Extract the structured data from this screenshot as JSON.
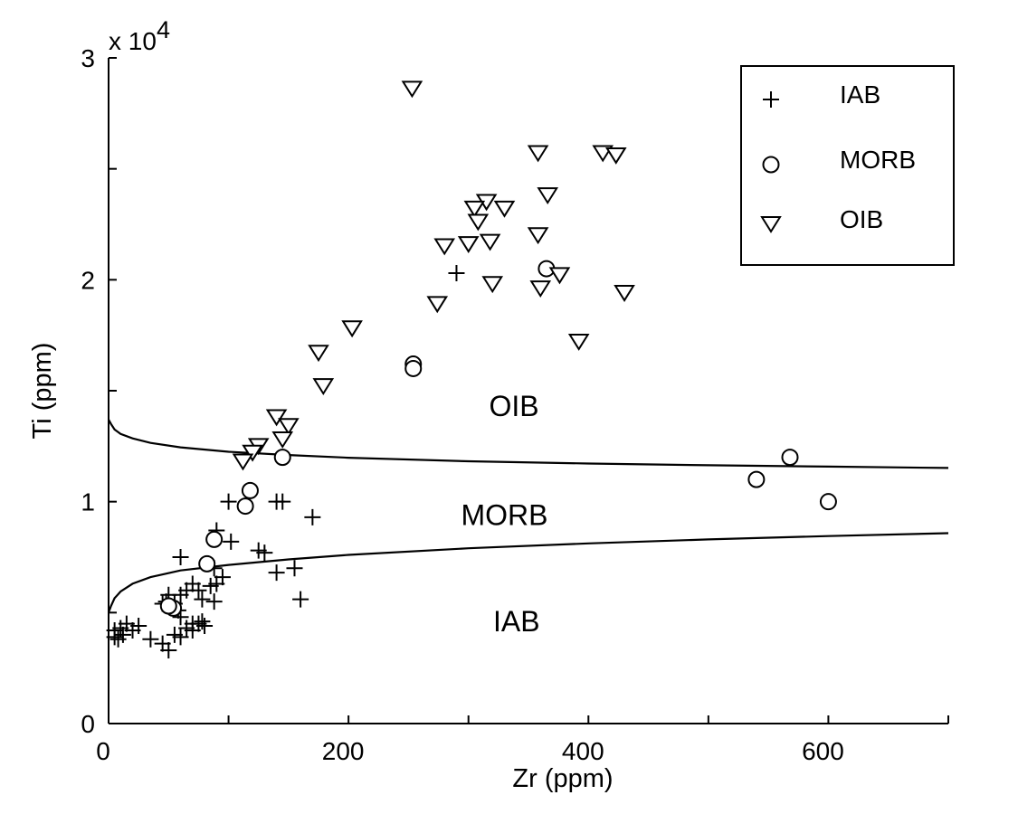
{
  "chart_data": {
    "type": "scatter",
    "xlabel": "Zr (ppm)",
    "ylabel": "Ti (ppm)",
    "xlim": [
      0,
      700
    ],
    "ylim": [
      0,
      30000
    ],
    "y_multiplier_label": "x 10",
    "y_multiplier_exponent": "4",
    "x_ticks": [
      0,
      100,
      200,
      300,
      400,
      500,
      600,
      700
    ],
    "x_tick_labels": [
      "0",
      "",
      "200",
      "",
      "400",
      "",
      "600",
      ""
    ],
    "y_ticks": [
      0,
      5000,
      10000,
      15000,
      20000,
      25000,
      30000
    ],
    "y_tick_labels": [
      "0",
      "",
      "1",
      "",
      "2",
      "",
      "3"
    ],
    "legend": {
      "position": "top-right",
      "entries": [
        {
          "label": "IAB",
          "marker": "plus"
        },
        {
          "label": "MORB",
          "marker": "circle"
        },
        {
          "label": "OIB",
          "marker": "triangle-down"
        }
      ]
    },
    "region_labels": [
      {
        "text": "OIB",
        "x": 338,
        "y": 14300
      },
      {
        "text": "MORB",
        "x": 330,
        "y": 9400
      },
      {
        "text": "IAB",
        "x": 340,
        "y": 4600
      }
    ],
    "boundaries": [
      {
        "name": "OIB-MORB boundary",
        "points": [
          [
            0,
            13700
          ],
          [
            2,
            13500
          ],
          [
            5,
            13250
          ],
          [
            10,
            13050
          ],
          [
            20,
            12850
          ],
          [
            35,
            12650
          ],
          [
            60,
            12450
          ],
          [
            100,
            12250
          ],
          [
            150,
            12100
          ],
          [
            200,
            11980
          ],
          [
            300,
            11820
          ],
          [
            400,
            11720
          ],
          [
            500,
            11640
          ],
          [
            600,
            11580
          ],
          [
            700,
            11520
          ]
        ]
      },
      {
        "name": "MORB-IAB boundary",
        "points": [
          [
            0,
            5000
          ],
          [
            2,
            5300
          ],
          [
            5,
            5650
          ],
          [
            10,
            5950
          ],
          [
            20,
            6300
          ],
          [
            35,
            6600
          ],
          [
            60,
            6900
          ],
          [
            100,
            7150
          ],
          [
            150,
            7400
          ],
          [
            200,
            7600
          ],
          [
            300,
            7900
          ],
          [
            400,
            8120
          ],
          [
            500,
            8300
          ],
          [
            600,
            8450
          ],
          [
            700,
            8580
          ]
        ]
      }
    ],
    "series": [
      {
        "name": "IAB",
        "marker": "plus",
        "points": [
          [
            290,
            20300
          ],
          [
            145,
            10000
          ],
          [
            100,
            10000
          ],
          [
            140,
            10000
          ],
          [
            102,
            8200
          ],
          [
            90,
            8700
          ],
          [
            170,
            9300
          ],
          [
            60,
            7500
          ],
          [
            125,
            7800
          ],
          [
            130,
            7700
          ],
          [
            155,
            7000
          ],
          [
            140,
            6800
          ],
          [
            88,
            7000
          ],
          [
            95,
            6600
          ],
          [
            90,
            6300
          ],
          [
            85,
            6200
          ],
          [
            70,
            6300
          ],
          [
            65,
            6000
          ],
          [
            75,
            6000
          ],
          [
            60,
            5800
          ],
          [
            50,
            5800
          ],
          [
            48,
            5500
          ],
          [
            55,
            5400
          ],
          [
            52,
            5200
          ],
          [
            45,
            5400
          ],
          [
            58,
            5100
          ],
          [
            60,
            4800
          ],
          [
            70,
            4500
          ],
          [
            75,
            4500
          ],
          [
            80,
            4400
          ],
          [
            88,
            5500
          ],
          [
            78,
            5600
          ],
          [
            160,
            5600
          ],
          [
            10,
            4300
          ],
          [
            15,
            4500
          ],
          [
            20,
            4200
          ],
          [
            25,
            4400
          ],
          [
            5,
            4200
          ],
          [
            8,
            3800
          ],
          [
            12,
            4000
          ],
          [
            35,
            3800
          ],
          [
            45,
            3600
          ],
          [
            50,
            3300
          ],
          [
            60,
            3900
          ],
          [
            65,
            4300
          ],
          [
            5,
            3900
          ],
          [
            55,
            4000
          ],
          [
            70,
            4200
          ],
          [
            78,
            4600
          ]
        ]
      },
      {
        "name": "MORB",
        "marker": "circle",
        "points": [
          [
            365,
            20500
          ],
          [
            254,
            16200
          ],
          [
            254,
            16000
          ],
          [
            145,
            12000
          ],
          [
            118,
            10500
          ],
          [
            114,
            9800
          ],
          [
            88,
            8300
          ],
          [
            82,
            7200
          ],
          [
            54,
            5200
          ],
          [
            50,
            5300
          ],
          [
            540,
            11000
          ],
          [
            568,
            12000
          ],
          [
            600,
            10000
          ]
        ]
      },
      {
        "name": "OIB",
        "marker": "triangle-down",
        "points": [
          [
            253,
            28600
          ],
          [
            358,
            25700
          ],
          [
            412,
            25700
          ],
          [
            423,
            25600
          ],
          [
            366,
            23800
          ],
          [
            315,
            23500
          ],
          [
            330,
            23200
          ],
          [
            305,
            23200
          ],
          [
            308,
            22600
          ],
          [
            358,
            22000
          ],
          [
            318,
            21700
          ],
          [
            280,
            21500
          ],
          [
            300,
            21600
          ],
          [
            376,
            20200
          ],
          [
            360,
            19600
          ],
          [
            320,
            19800
          ],
          [
            430,
            19400
          ],
          [
            274,
            18900
          ],
          [
            203,
            17800
          ],
          [
            392,
            17200
          ],
          [
            175,
            16700
          ],
          [
            179,
            15200
          ],
          [
            140,
            13800
          ],
          [
            150,
            13400
          ],
          [
            145,
            12800
          ],
          [
            125,
            12500
          ],
          [
            120,
            12200
          ],
          [
            112,
            11800
          ]
        ]
      }
    ]
  }
}
